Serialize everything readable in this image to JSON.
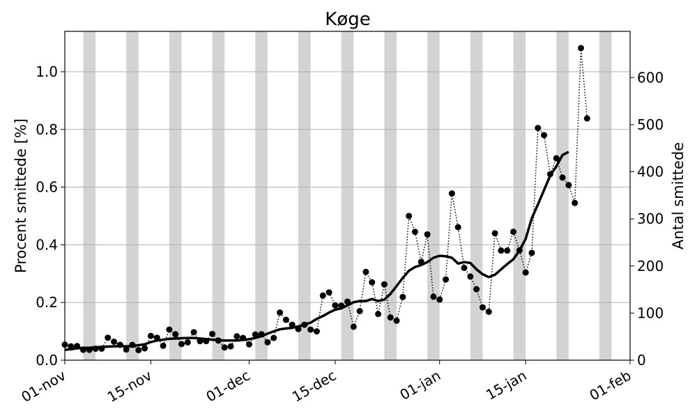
{
  "chart_data": {
    "type": "line",
    "title": "Køge",
    "ylabel_left": "Procent smittede [%]",
    "ylabel_right": "Antal smittede",
    "xlim": [
      "2020-11-01",
      "2021-02-01"
    ],
    "ylim_left": [
      0,
      1.14
    ],
    "ylim_right": [
      0,
      698
    ],
    "x_ticks": [
      {
        "date": "2020-11-01",
        "label": "01-nov"
      },
      {
        "date": "2020-11-15",
        "label": "15-nov"
      },
      {
        "date": "2020-12-01",
        "label": "01-dec"
      },
      {
        "date": "2020-12-15",
        "label": "15-dec"
      },
      {
        "date": "2021-01-01",
        "label": "01-jan"
      },
      {
        "date": "2021-01-15",
        "label": "15-jan"
      },
      {
        "date": "2021-02-01",
        "label": "01-feb"
      }
    ],
    "y_ticks_left": [
      {
        "value": 0.0,
        "label": "0.0"
      },
      {
        "value": 0.2,
        "label": "0.2"
      },
      {
        "value": 0.4,
        "label": "0.4"
      },
      {
        "value": 0.6,
        "label": "0.6"
      },
      {
        "value": 0.8,
        "label": "0.8"
      },
      {
        "value": 1.0,
        "label": "1.0"
      }
    ],
    "y_ticks_right": [
      {
        "value": 0,
        "label": "0"
      },
      {
        "value": 100,
        "label": "100"
      },
      {
        "value": 200,
        "label": "200"
      },
      {
        "value": 300,
        "label": "300"
      },
      {
        "value": 400,
        "label": "400"
      },
      {
        "value": 500,
        "label": "500"
      },
      {
        "value": 600,
        "label": "600"
      }
    ],
    "grid": "horizontal",
    "weekend_band_color": "#d3d3d3",
    "weekend_bands": [
      [
        "2020-11-04",
        "2020-11-06"
      ],
      [
        "2020-11-11",
        "2020-11-13"
      ],
      [
        "2020-11-18",
        "2020-11-20"
      ],
      [
        "2020-11-25",
        "2020-11-27"
      ],
      [
        "2020-12-02",
        "2020-12-04"
      ],
      [
        "2020-12-09",
        "2020-12-11"
      ],
      [
        "2020-12-16",
        "2020-12-18"
      ],
      [
        "2020-12-23",
        "2020-12-25"
      ],
      [
        "2020-12-30",
        "2021-01-01"
      ],
      [
        "2021-01-06",
        "2021-01-08"
      ],
      [
        "2021-01-13",
        "2021-01-15"
      ],
      [
        "2021-01-20",
        "2021-01-22"
      ],
      [
        "2021-01-27",
        "2021-01-29"
      ]
    ],
    "series": [
      {
        "style": "dotted-markers",
        "color": "#000000",
        "x_start": "2020-11-01",
        "x_step_days": 1,
        "values": [
          0.054,
          0.048,
          0.049,
          0.036,
          0.036,
          0.04,
          0.04,
          0.078,
          0.064,
          0.053,
          0.037,
          0.053,
          0.035,
          0.041,
          0.084,
          0.078,
          0.05,
          0.106,
          0.09,
          0.056,
          0.062,
          0.097,
          0.066,
          0.066,
          0.091,
          0.068,
          0.044,
          0.048,
          0.083,
          0.077,
          0.055,
          0.089,
          0.09,
          0.062,
          0.077,
          0.165,
          0.14,
          0.123,
          0.108,
          0.123,
          0.106,
          0.1,
          0.224,
          0.235,
          0.19,
          0.189,
          0.203,
          0.116,
          0.17,
          0.306,
          0.27,
          0.16,
          0.263,
          0.148,
          0.137,
          0.219,
          0.5,
          0.445,
          0.341,
          0.436,
          0.22,
          0.21,
          0.28,
          0.578,
          0.461,
          0.32,
          0.29,
          0.246,
          0.183,
          0.168,
          0.44,
          0.38,
          0.38,
          0.445,
          0.381,
          0.304,
          0.372,
          0.805,
          0.78,
          0.645,
          0.7,
          0.633,
          0.607,
          0.545,
          1.082,
          0.838
        ]
      },
      {
        "style": "solid-thick",
        "color": "#000000",
        "x_start": "2020-11-01",
        "x_step_days": 1,
        "values": [
          0.036,
          0.038,
          0.041,
          0.043,
          0.043,
          0.045,
          0.046,
          0.047,
          0.048,
          0.049,
          0.048,
          0.049,
          0.052,
          0.055,
          0.063,
          0.068,
          0.071,
          0.074,
          0.075,
          0.076,
          0.077,
          0.077,
          0.075,
          0.073,
          0.071,
          0.069,
          0.068,
          0.068,
          0.068,
          0.07,
          0.073,
          0.077,
          0.083,
          0.092,
          0.1,
          0.107,
          0.11,
          0.112,
          0.117,
          0.124,
          0.13,
          0.143,
          0.153,
          0.165,
          0.175,
          0.18,
          0.19,
          0.201,
          0.205,
          0.205,
          0.212,
          0.205,
          0.21,
          0.23,
          0.257,
          0.285,
          0.31,
          0.323,
          0.33,
          0.34,
          0.355,
          0.362,
          0.36,
          0.355,
          0.335,
          0.34,
          0.337,
          0.315,
          0.298,
          0.288,
          0.296,
          0.315,
          0.333,
          0.35,
          0.38,
          0.42,
          0.492,
          0.54,
          0.59,
          0.64,
          0.672,
          0.711,
          0.722
        ]
      }
    ]
  }
}
